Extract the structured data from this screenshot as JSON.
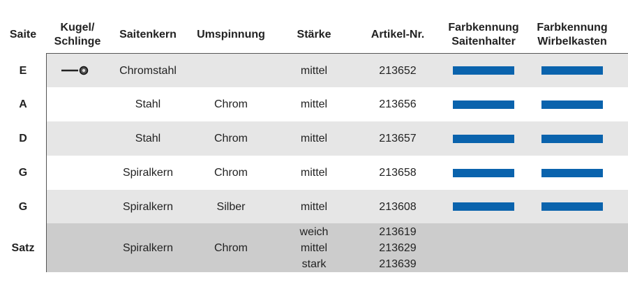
{
  "table": {
    "header": [
      [
        "Saite"
      ],
      [
        "Kugel/",
        "Schlinge"
      ],
      [
        "Saitenkern"
      ],
      [
        "Umspinnung"
      ],
      [
        "Stärke"
      ],
      [
        "Artikel-Nr."
      ],
      [
        "Farbkennung",
        "Saitenhalter"
      ],
      [
        "Farbkennung",
        "Wirbelkasten"
      ]
    ],
    "rows": [
      {
        "cells": [
          [
            "E"
          ],
          [],
          [
            "Chromstahl"
          ],
          [],
          [
            "mittel"
          ],
          [
            "213652"
          ]
        ],
        "colors": [
          "#0a63ad",
          "#0a63ad"
        ],
        "shade": "#e6e6e6"
      },
      {
        "cells": [
          [
            "A"
          ],
          [],
          [
            "Stahl"
          ],
          [
            "Chrom"
          ],
          [
            "mittel"
          ],
          [
            "213656"
          ]
        ],
        "colors": [
          "#0a63ad",
          "#0a63ad"
        ],
        "shade": "#ffffff"
      },
      {
        "cells": [
          [
            "D"
          ],
          [],
          [
            "Stahl"
          ],
          [
            "Chrom"
          ],
          [
            "mittel"
          ],
          [
            "213657"
          ]
        ],
        "colors": [
          "#0a63ad",
          "#0a63ad"
        ],
        "shade": "#e6e6e6"
      },
      {
        "cells": [
          [
            "G"
          ],
          [],
          [
            "Spiralkern"
          ],
          [
            "Chrom"
          ],
          [
            "mittel"
          ],
          [
            "213658"
          ]
        ],
        "colors": [
          "#0a63ad",
          "#0a63ad"
        ],
        "shade": "#ffffff"
      },
      {
        "cells": [
          [
            "G"
          ],
          [],
          [
            "Spiralkern"
          ],
          [
            "Silber"
          ],
          [
            "mittel"
          ],
          [
            "213608"
          ]
        ],
        "colors": [
          "#0a63ad",
          "#0a63ad"
        ],
        "shade": "#e6e6e6"
      },
      {
        "cells": [
          [
            "Satz"
          ],
          [],
          [
            "Spiralkern"
          ],
          [
            "Chrom"
          ],
          [
            "weich",
            "mittel",
            "stark"
          ],
          [
            "213619",
            "213629",
            "213639"
          ]
        ],
        "colors": [],
        "shade": "#cccccc"
      }
    ]
  }
}
